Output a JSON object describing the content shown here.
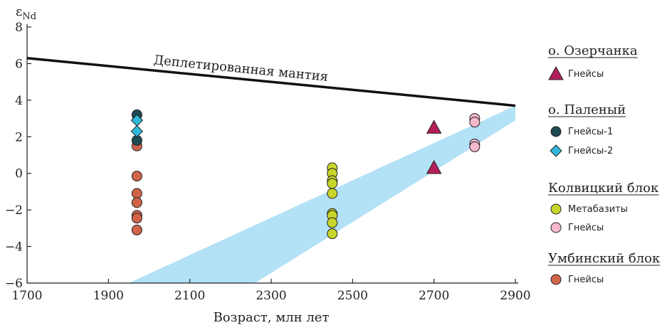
{
  "chart_data": {
    "type": "scatter",
    "xlabel": "Возраст, млн лет",
    "ylabel_main": "ε",
    "ylabel_sub": "Nd",
    "xlim": [
      1700,
      2900
    ],
    "ylim": [
      -6,
      8
    ],
    "xticks": [
      1700,
      1900,
      2100,
      2300,
      2500,
      2700,
      2900
    ],
    "yticks": [
      8,
      6,
      4,
      2,
      0,
      -2,
      -4,
      -6
    ],
    "depleted_mantle": {
      "label": "Деплетированная мантия",
      "points": [
        [
          1700,
          6.3
        ],
        [
          2900,
          3.7
        ]
      ]
    },
    "band": {
      "color": "#b3e1f5",
      "polygon": [
        [
          1950,
          -6
        ],
        [
          2260,
          -6
        ],
        [
          2900,
          2.9
        ],
        [
          2900,
          3.7
        ]
      ]
    },
    "groups": [
      {
        "heading": "о. Озерчанка",
        "series": [
          {
            "name": "Гнейсы",
            "marker": "triangle",
            "color": "#b41f5a",
            "points": [
              [
                2700,
                2.5
              ],
              [
                2700,
                0.3
              ]
            ]
          }
        ]
      },
      {
        "heading": "о. Паленый",
        "series": [
          {
            "name": "Гнейсы-1",
            "marker": "circle",
            "color": "#1d4a55",
            "points": [
              [
                1970,
                3.2
              ],
              [
                1970,
                1.8
              ]
            ]
          },
          {
            "name": "Гнейсы-2",
            "marker": "diamond",
            "color": "#2fb8da",
            "points": [
              [
                1970,
                2.9
              ],
              [
                1970,
                2.3
              ]
            ]
          }
        ]
      },
      {
        "heading": "Колвицкий блок",
        "series": [
          {
            "name": "Метабазиты",
            "marker": "circle",
            "color": "#c8d62b",
            "points": [
              [
                2450,
                0.3
              ],
              [
                2450,
                0.0
              ],
              [
                2450,
                -0.4
              ],
              [
                2450,
                -0.55
              ],
              [
                2450,
                -1.1
              ],
              [
                2450,
                -2.2
              ],
              [
                2450,
                -2.3
              ],
              [
                2450,
                -2.7
              ],
              [
                2450,
                -3.3
              ]
            ]
          },
          {
            "name": "Гнейсы",
            "marker": "circle",
            "color": "#f5b8cd",
            "points": [
              [
                2800,
                3.0
              ],
              [
                2800,
                2.8
              ],
              [
                2800,
                1.6
              ],
              [
                2800,
                1.45
              ]
            ]
          }
        ]
      },
      {
        "heading": "Умбинский блок",
        "series": [
          {
            "name": "Гнейсы",
            "marker": "circle",
            "color": "#d0644a",
            "points": [
              [
                1970,
                1.5
              ],
              [
                1970,
                -0.15
              ],
              [
                1970,
                -1.1
              ],
              [
                1970,
                -1.6
              ],
              [
                1970,
                -2.3
              ],
              [
                1970,
                -2.45
              ],
              [
                1970,
                -3.1
              ]
            ]
          }
        ]
      }
    ]
  }
}
